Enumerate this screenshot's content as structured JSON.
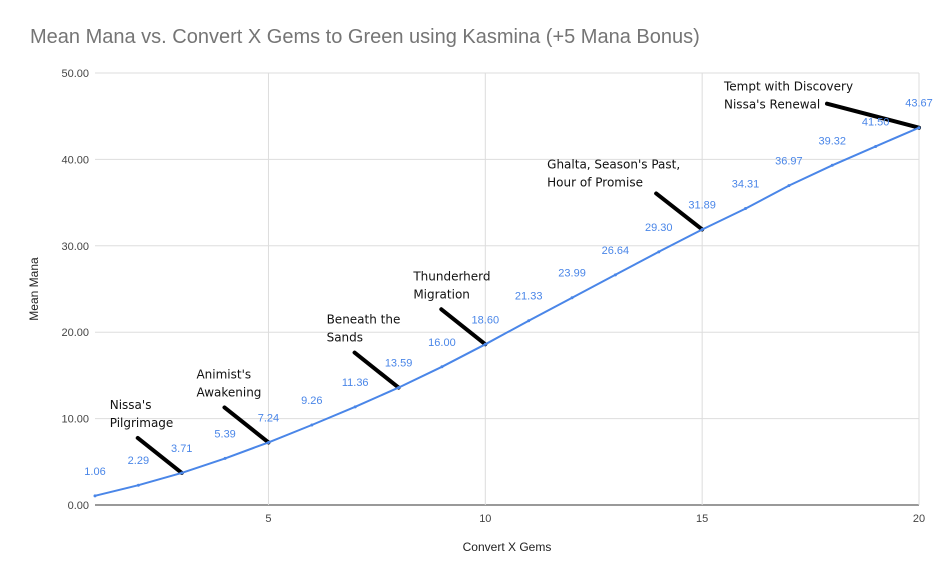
{
  "chart_data": {
    "type": "line",
    "title": "Mean Mana vs. Convert X Gems to Green using Kasmina (+5 Mana Bonus)",
    "xlabel": "Convert X Gems",
    "ylabel": "Mean Mana",
    "xlim": [
      1,
      20
    ],
    "ylim": [
      0,
      50
    ],
    "x_ticks": [
      "5",
      "10",
      "15",
      "20"
    ],
    "y_ticks": [
      "0.00",
      "10.00",
      "20.00",
      "30.00",
      "40.00",
      "50.00"
    ],
    "grid": true,
    "series": [
      {
        "color": "#4a86e8",
        "x": [
          1,
          2,
          3,
          4,
          5,
          6,
          7,
          8,
          9,
          10,
          11,
          12,
          13,
          14,
          15,
          16,
          17,
          18,
          19,
          20
        ],
        "values": [
          1.06,
          2.29,
          3.71,
          5.39,
          7.24,
          9.26,
          11.36,
          13.59,
          16.0,
          18.6,
          21.33,
          23.99,
          26.64,
          29.3,
          31.89,
          34.31,
          36.97,
          39.32,
          41.5,
          43.67
        ],
        "labels": [
          "1.06",
          "2.29",
          "3.71",
          "5.39",
          "7.24",
          "9.26",
          "11.36",
          "13.59",
          "16.00",
          "18.60",
          "21.33",
          "23.99",
          "26.64",
          "29.30",
          "31.89",
          "34.31",
          "36.97",
          "39.32",
          "41.50",
          "43.67"
        ]
      }
    ],
    "annotations": [
      {
        "x": 3,
        "y": 3.71,
        "lines": [
          "Nissa's",
          "Pilgrimage"
        ]
      },
      {
        "x": 5,
        "y": 7.24,
        "lines": [
          "Animist's",
          "Awakening"
        ]
      },
      {
        "x": 8,
        "y": 13.59,
        "lines": [
          "Beneath the",
          "Sands"
        ]
      },
      {
        "x": 10,
        "y": 18.6,
        "lines": [
          "Thunderherd",
          "Migration"
        ]
      },
      {
        "x": 15,
        "y": 31.89,
        "lines": [
          "Ghalta, Season's Past,",
          "Hour of Promise"
        ]
      },
      {
        "x": 20,
        "y": 43.67,
        "lines": [
          "Tempt with Discovery",
          "Nissa's Renewal"
        ]
      }
    ]
  }
}
